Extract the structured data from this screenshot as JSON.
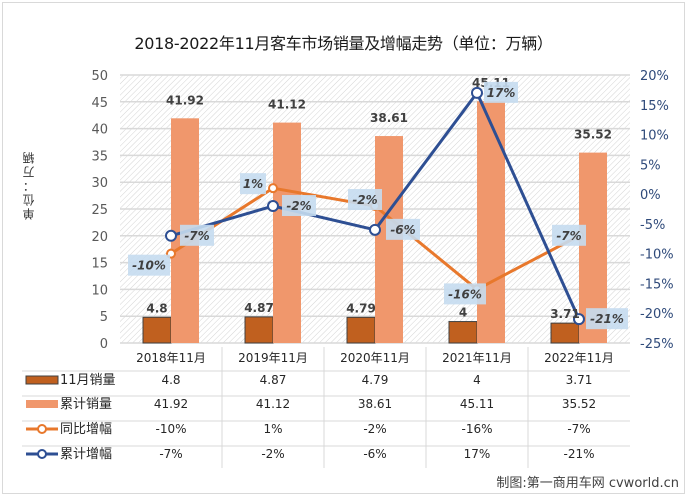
{
  "chart_data": {
    "type": "bar",
    "title": "2018-2022年11月客车市场销量及增幅走势（单位：万辆）",
    "ylabel": "单位：万辆",
    "ylim": [
      0,
      50
    ],
    "yticks": [
      0,
      5,
      10,
      15,
      20,
      25,
      30,
      35,
      40,
      45,
      50
    ],
    "y2lim": [
      -25,
      20
    ],
    "y2ticks": [
      "-25%",
      "-20%",
      "-15%",
      "-10%",
      "-5%",
      "0%",
      "5%",
      "10%",
      "15%",
      "20%"
    ],
    "y2tick_values": [
      -25,
      -20,
      -15,
      -10,
      -5,
      0,
      5,
      10,
      15,
      20
    ],
    "grid": true,
    "categories": [
      "2018年11月",
      "2019年11月",
      "2020年11月",
      "2021年11月",
      "2022年11月"
    ],
    "series": [
      {
        "name": "11月销量",
        "kind": "bar",
        "axis": "left",
        "color": "#c0601f",
        "values": [
          4.8,
          4.87,
          4.79,
          4,
          3.71
        ],
        "labels": [
          "4.8",
          "4.87",
          "4.79",
          "4",
          "3.71"
        ]
      },
      {
        "name": "累计销量",
        "kind": "bar",
        "axis": "left",
        "color": "#f0976c",
        "values": [
          41.92,
          41.12,
          38.61,
          45.11,
          35.52
        ],
        "labels": [
          "41.92",
          "41.12",
          "38.61",
          "45.11",
          "35.52"
        ]
      },
      {
        "name": "同比增幅",
        "kind": "line",
        "axis": "right",
        "color": "#e8782c",
        "values": [
          -10,
          1,
          -2,
          -16,
          -7
        ],
        "labels": [
          "-10%",
          "1%",
          "-2%",
          "-16%",
          "-7%"
        ]
      },
      {
        "name": "累计增幅",
        "kind": "line",
        "axis": "right",
        "color": "#2e4f93",
        "values": [
          -7,
          -2,
          -6,
          17,
          -21
        ],
        "labels": [
          "-7%",
          "-2%",
          "-6%",
          "17%",
          "-21%"
        ]
      }
    ],
    "legend": "bottom-table",
    "data_table": true
  },
  "credit": "制图:第一商用车网 cvworld.cn"
}
